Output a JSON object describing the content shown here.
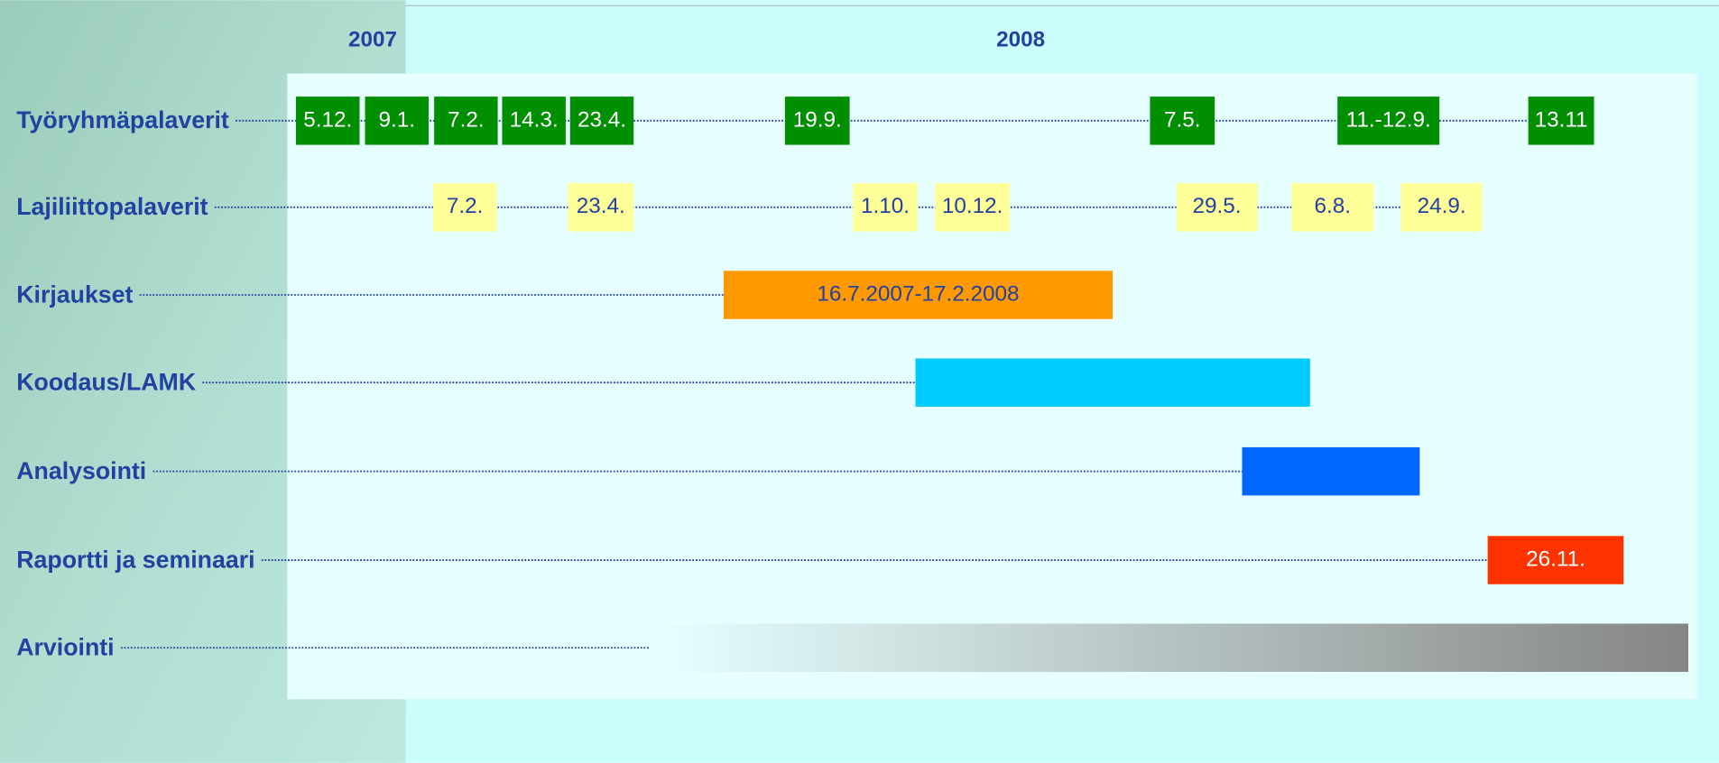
{
  "years": [
    "2007",
    "2008"
  ],
  "rows": [
    {
      "label": "Työryhmäpalaverit",
      "items": [
        "5.12.",
        "9.1.",
        "7.2.",
        "14.3.",
        "23.4.",
        "19.9.",
        "7.5.",
        "11.-12.9.",
        "13.11"
      ]
    },
    {
      "label": "Lajiliittopalaverit",
      "items": [
        "7.2.",
        "23.4.",
        "1.10.",
        "10.12.",
        "29.5.",
        "6.8.",
        "24.9."
      ]
    },
    {
      "label": "Kirjaukset",
      "items": [
        "16.7.2007-17.2.2008"
      ]
    },
    {
      "label": "Koodaus/LAMK"
    },
    {
      "label": "Analysointi"
    },
    {
      "label": "Raportti ja seminaari",
      "items": [
        "26.11."
      ]
    },
    {
      "label": "Arviointi"
    }
  ]
}
